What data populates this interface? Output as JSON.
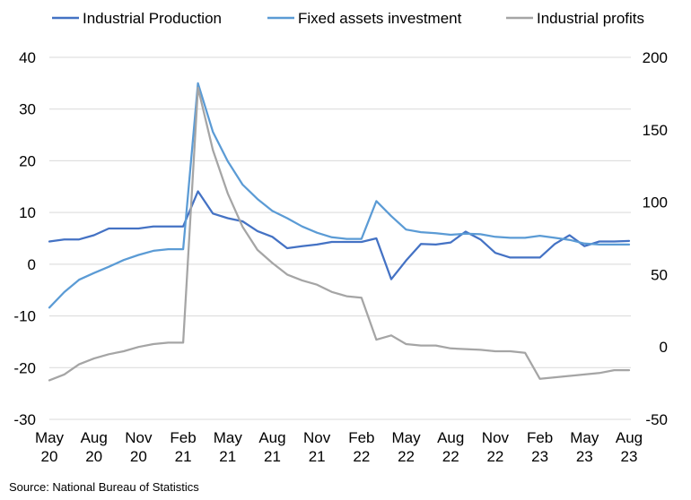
{
  "chart_data": {
    "type": "line",
    "title": "",
    "xlabel": "",
    "ylabel_left": "",
    "ylabel_right": "",
    "ylim_left": [
      -30,
      40
    ],
    "ylim_right": [
      -50,
      200
    ],
    "left_ticks": [
      "40",
      "30",
      "20",
      "10",
      "0",
      "-10",
      "-20",
      "-30"
    ],
    "right_ticks": [
      "200",
      "150",
      "100",
      "50",
      "0",
      "-50"
    ],
    "x_tick_labels": [
      {
        "month": "May",
        "year": "20"
      },
      {
        "month": "Aug",
        "year": "20"
      },
      {
        "month": "Nov",
        "year": "20"
      },
      {
        "month": "Feb",
        "year": "21"
      },
      {
        "month": "May",
        "year": "21"
      },
      {
        "month": "Aug",
        "year": "21"
      },
      {
        "month": "Nov",
        "year": "21"
      },
      {
        "month": "Feb",
        "year": "22"
      },
      {
        "month": "May",
        "year": "22"
      },
      {
        "month": "Aug",
        "year": "22"
      },
      {
        "month": "Nov",
        "year": "22"
      },
      {
        "month": "Feb",
        "year": "23"
      },
      {
        "month": "May",
        "year": "23"
      },
      {
        "month": "Aug",
        "year": "23"
      }
    ],
    "x_tick_index": [
      0,
      3,
      6,
      9,
      12,
      15,
      18,
      21,
      24,
      27,
      30,
      33,
      36,
      39
    ],
    "grid": true,
    "legend_position": "top",
    "series": [
      {
        "name": "Industrial Production",
        "axis": "left",
        "color": "#4472c4",
        "values": [
          4.4,
          4.8,
          4.8,
          5.6,
          6.9,
          6.9,
          6.9,
          7.3,
          7.3,
          7.3,
          14.1,
          9.8,
          8.9,
          8.3,
          6.4,
          5.3,
          3.1,
          3.5,
          3.8,
          4.3,
          4.3,
          4.3,
          5.0,
          -2.9,
          0.7,
          3.9,
          3.8,
          4.2,
          6.3,
          4.8,
          2.2,
          1.3,
          1.3,
          1.3,
          3.9,
          5.6,
          3.5,
          4.4,
          4.4,
          4.5
        ]
      },
      {
        "name": "Fixed assets investment",
        "axis": "left",
        "color": "#5b9bd5",
        "values": [
          -8.4,
          -5.4,
          -3.0,
          -1.7,
          -0.5,
          0.8,
          1.8,
          2.6,
          2.9,
          2.9,
          35.0,
          25.6,
          19.9,
          15.4,
          12.6,
          10.3,
          8.9,
          7.3,
          6.1,
          5.2,
          4.9,
          4.9,
          12.2,
          9.3,
          6.7,
          6.2,
          6.0,
          5.7,
          5.9,
          5.8,
          5.3,
          5.1,
          5.1,
          5.5,
          5.1,
          4.7,
          4.0,
          3.8,
          3.8,
          3.8
        ]
      },
      {
        "name": "Industrial profits",
        "axis": "right",
        "color": "#a5a5a5",
        "values": [
          -23,
          -19,
          -12,
          -8,
          -5,
          -3,
          0,
          2,
          3,
          3,
          179,
          136,
          106,
          83,
          67,
          58,
          50,
          46,
          43,
          38,
          35,
          34,
          5,
          8,
          2,
          1,
          1,
          -1,
          -1.5,
          -2,
          -3,
          -3,
          -4,
          -22,
          -21,
          -20,
          -19,
          -18,
          -16,
          -16
        ]
      }
    ]
  },
  "source_note": "Source: National Bureau of Statistics"
}
